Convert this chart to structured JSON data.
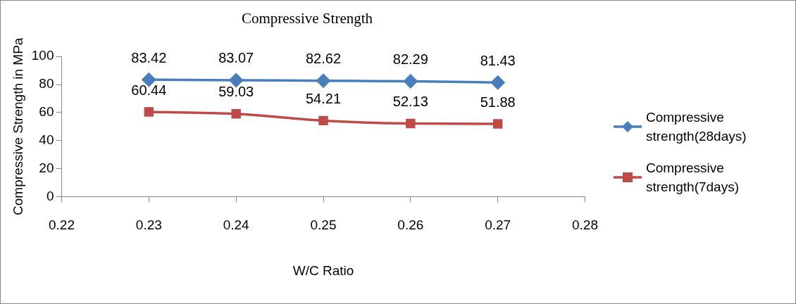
{
  "chart_data": {
    "type": "line",
    "title": "Compressive Strength",
    "xlabel": "W/C Ratio",
    "ylabel": "Compressive Strength in MPa",
    "x": [
      0.23,
      0.24,
      0.25,
      0.26,
      0.27
    ],
    "series": [
      {
        "name": "Compressive strength(28days)",
        "color": "#4a7ebb",
        "marker": "diamond",
        "values": [
          83.42,
          83.07,
          82.62,
          82.29,
          81.43
        ]
      },
      {
        "name": "Compressive strength(7days)",
        "color": "#be4b48",
        "marker": "square",
        "values": [
          60.44,
          59.03,
          54.21,
          52.13,
          51.88
        ]
      }
    ],
    "xlim": [
      0.22,
      0.28
    ],
    "xticks": [
      0.22,
      0.23,
      0.24,
      0.25,
      0.26,
      0.27,
      0.28
    ],
    "ylim": [
      0,
      100
    ],
    "yticks": [
      0,
      20,
      40,
      60,
      80,
      100
    ],
    "grid": false,
    "legend": "right",
    "data_labels": true,
    "line_style": "solid"
  }
}
